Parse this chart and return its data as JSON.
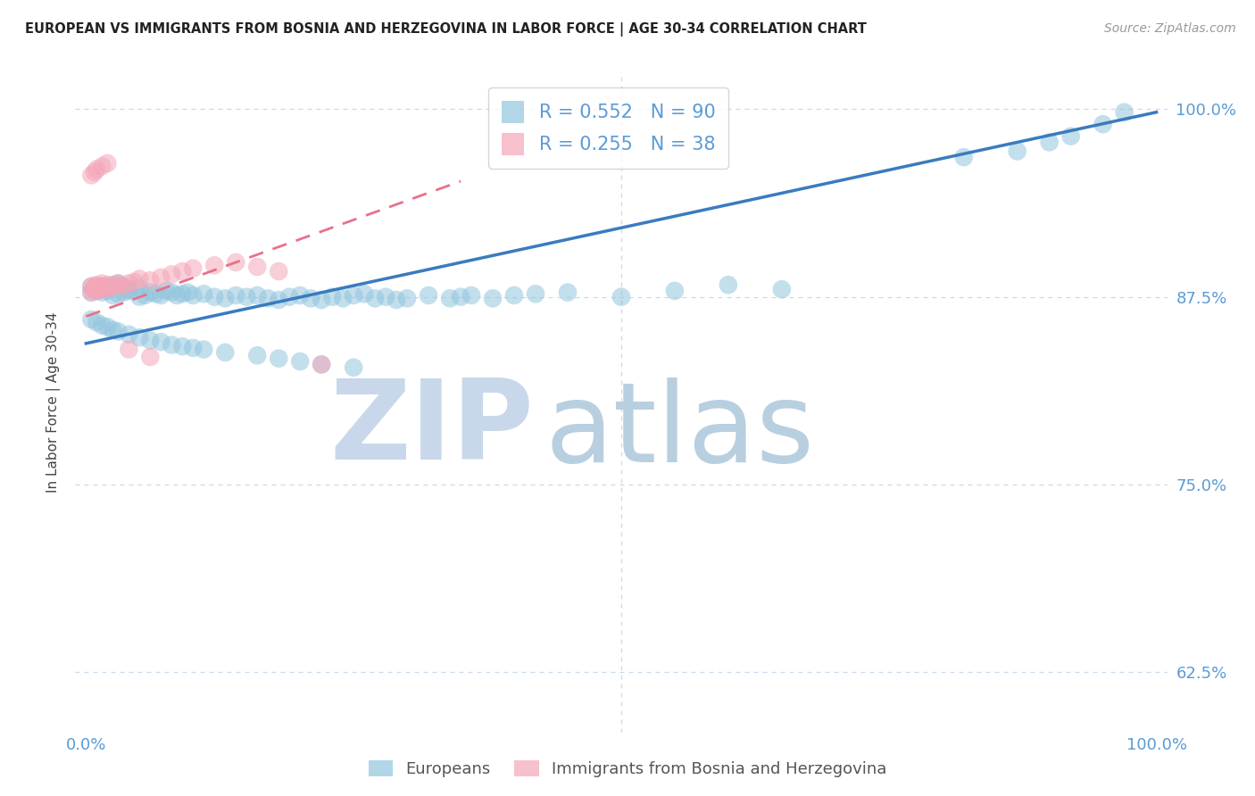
{
  "title": "EUROPEAN VS IMMIGRANTS FROM BOSNIA AND HERZEGOVINA IN LABOR FORCE | AGE 30-34 CORRELATION CHART",
  "source": "Source: ZipAtlas.com",
  "ylabel": "In Labor Force | Age 30-34",
  "blue_R": 0.552,
  "blue_N": 90,
  "pink_R": 0.255,
  "pink_N": 38,
  "blue_label": "Europeans",
  "pink_label": "Immigrants from Bosnia and Herzegovina",
  "xlim": [
    -0.01,
    1.01
  ],
  "ylim": [
    0.585,
    1.025
  ],
  "yticks": [
    0.625,
    0.75,
    0.875,
    1.0
  ],
  "ytick_labels": [
    "62.5%",
    "75.0%",
    "87.5%",
    "100.0%"
  ],
  "xtick_labels": [
    "0.0%",
    "100.0%"
  ],
  "xtick_pos": [
    0.0,
    1.0
  ],
  "blue_color": "#92c5de",
  "pink_color": "#f4a6b8",
  "blue_line_color": "#3a7bbf",
  "pink_line_color": "#e8708a",
  "title_color": "#222222",
  "axis_tick_color": "#5b9bd5",
  "watermark_zip_color": "#c8d8ea",
  "watermark_atlas_color": "#b8cfe0",
  "background_color": "#ffffff",
  "grid_color": "#c8daea",
  "blue_x": [
    0.005,
    0.005,
    0.008,
    0.01,
    0.012,
    0.015,
    0.015,
    0.018,
    0.02,
    0.02,
    0.025,
    0.025,
    0.03,
    0.03,
    0.035,
    0.035,
    0.04,
    0.04,
    0.05,
    0.05,
    0.055,
    0.06,
    0.065,
    0.07,
    0.075,
    0.08,
    0.085,
    0.09,
    0.095,
    0.1,
    0.11,
    0.12,
    0.13,
    0.14,
    0.15,
    0.16,
    0.17,
    0.18,
    0.19,
    0.2,
    0.21,
    0.22,
    0.23,
    0.24,
    0.25,
    0.26,
    0.27,
    0.28,
    0.29,
    0.3,
    0.32,
    0.34,
    0.35,
    0.36,
    0.38,
    0.4,
    0.42,
    0.45,
    0.5,
    0.55,
    0.6,
    0.65,
    0.82,
    0.87,
    0.9,
    0.92,
    0.95,
    0.97,
    0.005,
    0.01,
    0.015,
    0.02,
    0.025,
    0.03,
    0.04,
    0.05,
    0.06,
    0.07,
    0.08,
    0.09,
    0.1,
    0.11,
    0.13,
    0.16,
    0.18,
    0.2,
    0.22,
    0.25
  ],
  "blue_y": [
    0.878,
    0.882,
    0.88,
    0.879,
    0.881,
    0.878,
    0.882,
    0.88,
    0.879,
    0.881,
    0.876,
    0.883,
    0.877,
    0.884,
    0.878,
    0.882,
    0.879,
    0.88,
    0.875,
    0.881,
    0.876,
    0.878,
    0.877,
    0.876,
    0.879,
    0.878,
    0.876,
    0.877,
    0.878,
    0.876,
    0.877,
    0.875,
    0.874,
    0.876,
    0.875,
    0.876,
    0.874,
    0.873,
    0.875,
    0.876,
    0.874,
    0.873,
    0.875,
    0.874,
    0.876,
    0.877,
    0.874,
    0.875,
    0.873,
    0.874,
    0.876,
    0.874,
    0.875,
    0.876,
    0.874,
    0.876,
    0.877,
    0.878,
    0.875,
    0.879,
    0.883,
    0.88,
    0.968,
    0.972,
    0.978,
    0.982,
    0.99,
    0.998,
    0.86,
    0.858,
    0.856,
    0.855,
    0.853,
    0.852,
    0.85,
    0.848,
    0.846,
    0.845,
    0.843,
    0.842,
    0.841,
    0.84,
    0.838,
    0.836,
    0.834,
    0.832,
    0.83,
    0.828
  ],
  "pink_x": [
    0.005,
    0.005,
    0.007,
    0.008,
    0.009,
    0.01,
    0.01,
    0.012,
    0.012,
    0.015,
    0.015,
    0.018,
    0.02,
    0.02,
    0.025,
    0.03,
    0.03,
    0.035,
    0.04,
    0.045,
    0.05,
    0.06,
    0.07,
    0.08,
    0.09,
    0.1,
    0.12,
    0.14,
    0.16,
    0.18,
    0.005,
    0.008,
    0.01,
    0.015,
    0.02,
    0.04,
    0.06,
    0.22
  ],
  "pink_y": [
    0.878,
    0.882,
    0.88,
    0.881,
    0.882,
    0.879,
    0.883,
    0.88,
    0.882,
    0.881,
    0.884,
    0.882,
    0.88,
    0.883,
    0.882,
    0.884,
    0.883,
    0.882,
    0.884,
    0.885,
    0.887,
    0.886,
    0.888,
    0.89,
    0.892,
    0.894,
    0.896,
    0.898,
    0.895,
    0.892,
    0.956,
    0.958,
    0.96,
    0.962,
    0.964,
    0.84,
    0.835,
    0.83
  ],
  "blue_line_x0": 0.0,
  "blue_line_x1": 1.0,
  "blue_line_y0": 0.844,
  "blue_line_y1": 0.998,
  "pink_line_x0": 0.0,
  "pink_line_x1": 0.35,
  "pink_line_y0": 0.862,
  "pink_line_y1": 0.952
}
